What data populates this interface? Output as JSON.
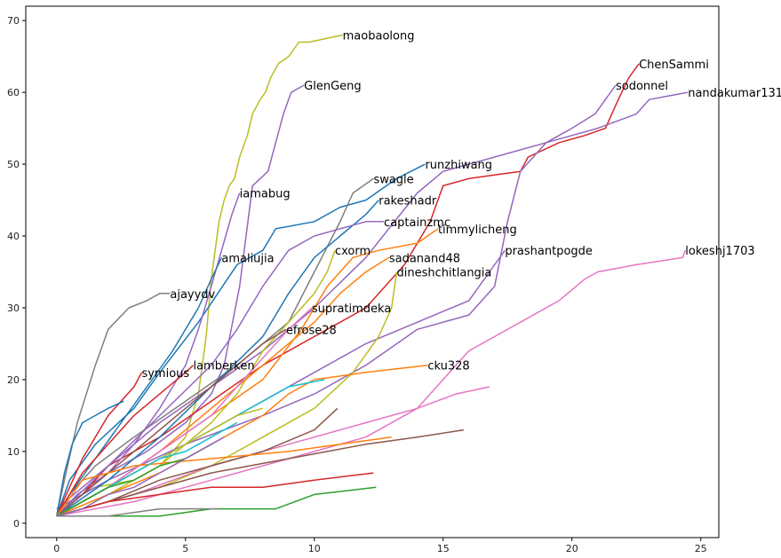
{
  "chart_data": {
    "type": "line",
    "title": "",
    "xlabel": "",
    "ylabel": "",
    "xlim": [
      -1.2,
      25.7
    ],
    "ylim": [
      -2,
      72
    ],
    "xticks": [
      "0",
      "5",
      "10",
      "15",
      "20",
      "25"
    ],
    "yticks": [
      "0",
      "10",
      "20",
      "30",
      "40",
      "50",
      "60",
      "70"
    ],
    "grid": false,
    "legend": "none",
    "colors": {
      "blue": "#1f77b4",
      "orange": "#ff7f0e",
      "green": "#2ca02c",
      "red": "#d62728",
      "purple": "#9467bd",
      "brown": "#8c564b",
      "pink": "#e377c2",
      "gray": "#7f7f7f",
      "olive": "#bcbd22",
      "cyan": "#17becf"
    },
    "series": [
      {
        "name": "maobaolong",
        "color": "#bcbd22",
        "label_at": [
          11.1,
          68
        ],
        "x": [
          0,
          0.5,
          1.5,
          3,
          4,
          5,
          5.5,
          5.8,
          6.0,
          6.3,
          6.5,
          6.7,
          6.9,
          7.1,
          7.4,
          7.6,
          7.9,
          8.1,
          8.3,
          8.6,
          9.0,
          9.4,
          9.8,
          11.1
        ],
        "y": [
          1,
          3,
          5,
          6,
          8,
          12,
          18,
          26,
          34,
          42,
          45,
          47,
          48,
          51,
          54,
          57,
          59,
          60,
          62,
          64,
          65,
          67,
          67,
          68
        ]
      },
      {
        "name": "GlenGeng",
        "color": "#9467bd",
        "label_at": [
          9.6,
          61
        ],
        "x": [
          0,
          0.8,
          2,
          3.5,
          5,
          6,
          6.5,
          7.1,
          7.6,
          8.2,
          8.5,
          8.8,
          9.1,
          9.6
        ],
        "y": [
          1,
          4,
          7,
          10,
          14,
          18,
          22,
          33,
          47,
          49,
          53,
          57,
          60,
          61
        ]
      },
      {
        "name": "ChenSammi",
        "color": "#d62728",
        "label_at": [
          22.6,
          64
        ],
        "x": [
          0,
          1,
          2,
          4,
          6,
          8,
          10,
          12,
          13.5,
          14.5,
          15,
          16,
          18,
          18.3,
          19.5,
          20.5,
          21.3,
          21.8,
          22.2,
          22.6
        ],
        "y": [
          1,
          4,
          8,
          12,
          17,
          22,
          26,
          30,
          36,
          42,
          47,
          48,
          49,
          51,
          53,
          54,
          55,
          59,
          62,
          64
        ]
      },
      {
        "name": "sodonnel",
        "color": "#9467bd",
        "label_at": [
          21.7,
          61
        ],
        "x": [
          0,
          2,
          5,
          8,
          10,
          12,
          14,
          16,
          17,
          17.5,
          18,
          19,
          20,
          20.9,
          21.3,
          21.7
        ],
        "y": [
          2,
          6,
          11,
          15,
          18,
          22,
          27,
          29,
          33,
          42,
          49,
          53,
          55,
          57,
          59,
          61
        ]
      },
      {
        "name": "nandakumar131",
        "color": "#9467bd",
        "label_at": [
          24.5,
          60
        ],
        "x": [
          0,
          2,
          4,
          6,
          8,
          10,
          12,
          14,
          15,
          17,
          19,
          21,
          22.5,
          23,
          24.5
        ],
        "y": [
          2,
          8,
          14,
          19,
          24,
          30,
          37,
          46,
          49,
          51,
          53,
          55,
          57,
          59,
          60
        ]
      },
      {
        "name": "runzhiwang",
        "color": "#1f77b4",
        "label_at": [
          14.3,
          50
        ],
        "x": [
          0,
          0.5,
          1.5,
          3,
          4,
          5.5,
          7,
          8,
          8.5,
          10,
          11,
          12,
          13.2,
          14.3
        ],
        "y": [
          1,
          6,
          11,
          16,
          21,
          28,
          36,
          38,
          41,
          42,
          44,
          45,
          48,
          50
        ]
      },
      {
        "name": "swagle",
        "color": "#7f7f7f",
        "label_at": [
          12.3,
          48
        ],
        "x": [
          0,
          0.5,
          1.5,
          3,
          5,
          7,
          9,
          10,
          11,
          11.5,
          12.3
        ],
        "y": [
          1,
          4,
          8,
          12,
          17,
          22,
          28,
          35,
          42,
          46,
          48
        ]
      },
      {
        "name": "iamabug",
        "color": "#9467bd",
        "label_at": [
          7.1,
          46
        ],
        "x": [
          0,
          1,
          2,
          3,
          4,
          5,
          5.5,
          6.0,
          6.4,
          6.8,
          7.1
        ],
        "y": [
          1,
          4,
          7,
          11,
          16,
          22,
          27,
          33,
          38,
          43,
          46
        ]
      },
      {
        "name": "rakeshadr",
        "color": "#1f77b4",
        "label_at": [
          12.5,
          45
        ],
        "x": [
          0,
          2,
          4,
          6,
          8,
          9,
          10,
          11,
          12,
          12.5
        ],
        "y": [
          1,
          6,
          12,
          19,
          26,
          32,
          37,
          40,
          43,
          45
        ]
      },
      {
        "name": "captainzmc",
        "color": "#9467bd",
        "label_at": [
          12.7,
          42
        ],
        "x": [
          0,
          2,
          4,
          6,
          7,
          8,
          9,
          10,
          11,
          12,
          12.7
        ],
        "y": [
          1,
          8,
          15,
          22,
          27,
          33,
          38,
          40,
          41,
          42,
          42
        ]
      },
      {
        "name": "timmylicheng",
        "color": "#ff7f0e",
        "label_at": [
          14.8,
          41
        ],
        "x": [
          0,
          2,
          4,
          6,
          8,
          9.5,
          10.5,
          11.5,
          12.5,
          14,
          14.8
        ],
        "y": [
          1,
          5,
          10,
          15,
          20,
          27,
          33,
          37,
          38,
          39,
          41
        ]
      },
      {
        "name": "cxorm",
        "color": "#bcbd22",
        "label_at": [
          10.8,
          38
        ],
        "x": [
          0,
          2,
          4,
          6,
          7,
          8,
          9,
          10,
          10.5,
          10.8
        ],
        "y": [
          1,
          4,
          8,
          14,
          18,
          24,
          28,
          32,
          35,
          38
        ]
      },
      {
        "name": "prashantpogde",
        "color": "#9467bd",
        "label_at": [
          17.4,
          38
        ],
        "x": [
          0,
          2,
          4,
          6,
          8,
          10,
          12,
          14,
          16,
          16.8,
          17.4
        ],
        "y": [
          1,
          5,
          9,
          13,
          17,
          21,
          25,
          28,
          31,
          35,
          38
        ]
      },
      {
        "name": "lokeshj1703",
        "color": "#e377c2",
        "label_at": [
          24.4,
          38
        ],
        "x": [
          0,
          3,
          6,
          9,
          12,
          14,
          15,
          16,
          17,
          18,
          19.5,
          20.5,
          21,
          22.5,
          24.3,
          24.4
        ],
        "y": [
          1,
          3,
          6,
          9,
          12,
          16,
          20,
          24,
          26,
          28,
          31,
          34,
          35,
          36,
          37,
          38
        ]
      },
      {
        "name": "sadanand48",
        "color": "#ff7f0e",
        "label_at": [
          12.9,
          37
        ],
        "x": [
          0,
          2,
          4,
          6,
          8,
          10,
          11,
          12,
          12.9
        ],
        "y": [
          1,
          5,
          10,
          16,
          22,
          28,
          32,
          35,
          37
        ]
      },
      {
        "name": "amaliujia",
        "color": "#1f77b4",
        "label_at": [
          6.4,
          37
        ],
        "x": [
          0,
          0.5,
          1.5,
          2.5,
          3.5,
          4.5,
          5.5,
          6.0,
          6.4
        ],
        "y": [
          1,
          4,
          9,
          14,
          19,
          24,
          30,
          34,
          37
        ]
      },
      {
        "name": "dineshchitlangia",
        "color": "#bcbd22",
        "label_at": [
          13.2,
          35
        ],
        "x": [
          0,
          2,
          4,
          6,
          8,
          10,
          11.5,
          12.5,
          13,
          13.2
        ],
        "y": [
          1,
          3,
          5,
          8,
          12,
          16,
          21,
          26,
          30,
          35
        ]
      },
      {
        "name": "ajayydv",
        "color": "#7f7f7f",
        "label_at": [
          4.4,
          32
        ],
        "x": [
          0,
          0.3,
          0.8,
          1.5,
          2,
          2.8,
          3.5,
          4.0,
          4.4
        ],
        "y": [
          1,
          6,
          14,
          22,
          27,
          30,
          31,
          32,
          32
        ]
      },
      {
        "name": "supratimdeka",
        "color": "#e377c2",
        "label_at": [
          9.9,
          30
        ],
        "x": [
          0,
          2,
          4,
          6,
          7,
          8,
          9,
          9.9
        ],
        "y": [
          1,
          5,
          10,
          15,
          19,
          23,
          27,
          30
        ]
      },
      {
        "name": "efrose28",
        "color": "#8c564b",
        "label_at": [
          8.9,
          27
        ],
        "x": [
          0,
          1,
          2,
          3,
          4,
          5,
          6,
          7,
          8,
          8.9
        ],
        "y": [
          1,
          4,
          7,
          10,
          13,
          16,
          19,
          22,
          25,
          27
        ]
      },
      {
        "name": "cku328",
        "color": "#ff7f0e",
        "label_at": [
          14.4,
          22
        ],
        "x": [
          0,
          2,
          4,
          6,
          8,
          9,
          10,
          12,
          14.4
        ],
        "y": [
          1,
          4,
          7,
          11,
          15,
          18,
          20,
          21,
          22
        ]
      },
      {
        "name": "lamberken",
        "color": "#d62728",
        "label_at": [
          5.3,
          22
        ],
        "x": [
          0,
          0.5,
          1,
          2,
          3,
          4,
          5,
          5.3
        ],
        "y": [
          1,
          4,
          7,
          11,
          15,
          18,
          21,
          22
        ]
      },
      {
        "name": "symious",
        "color": "#d62728",
        "label_at": [
          3.3,
          21
        ],
        "x": [
          0,
          0.5,
          1,
          1.5,
          2,
          2.5,
          3,
          3.3
        ],
        "y": [
          1,
          5,
          9,
          12,
          15,
          17,
          19,
          21
        ]
      },
      {
        "name": "",
        "color": "#e377c2",
        "x": [
          0,
          3,
          6,
          9,
          12,
          14,
          15.5,
          16.8
        ],
        "y": [
          1,
          4,
          8,
          11,
          14,
          16,
          18,
          19
        ]
      },
      {
        "name": "",
        "color": "#17becf",
        "x": [
          0,
          1,
          2,
          3,
          4,
          5,
          6,
          7,
          8,
          9,
          10.4
        ],
        "y": [
          1,
          3,
          5,
          7,
          9,
          11,
          13,
          15,
          17,
          19,
          20
        ]
      },
      {
        "name": "",
        "color": "#1f77b4",
        "x": [
          0,
          0.3,
          0.6,
          1.0,
          1.5,
          2.0,
          2.6
        ],
        "y": [
          1,
          7,
          11,
          14,
          15,
          16,
          17
        ]
      },
      {
        "name": "",
        "color": "#8c564b",
        "x": [
          0,
          2,
          4,
          6,
          8,
          10,
          10.9
        ],
        "y": [
          1,
          3,
          6,
          8,
          10,
          13,
          16
        ]
      },
      {
        "name": "",
        "color": "#8c564b",
        "x": [
          0,
          3,
          6,
          9,
          12,
          14,
          15.8
        ],
        "y": [
          1,
          4,
          7,
          9,
          11,
          12,
          13
        ]
      },
      {
        "name": "",
        "color": "#ff7f0e",
        "x": [
          0,
          1,
          3,
          6,
          9,
          11,
          13
        ],
        "y": [
          1,
          6,
          8,
          9,
          10,
          11,
          12
        ]
      },
      {
        "name": "",
        "color": "#d62728",
        "x": [
          0,
          2,
          4,
          6,
          8,
          10,
          12.3
        ],
        "y": [
          1,
          3,
          4,
          5,
          5,
          6,
          7
        ]
      },
      {
        "name": "",
        "color": "#2ca02c",
        "x": [
          0,
          2,
          4,
          6,
          8.5,
          10,
          12.4
        ],
        "y": [
          1,
          1,
          1,
          2,
          2,
          4,
          5
        ]
      },
      {
        "name": "",
        "color": "#7f7f7f",
        "x": [
          0,
          2,
          4,
          6.3
        ],
        "y": [
          1,
          1,
          2,
          2
        ]
      },
      {
        "name": "",
        "color": "#bcbd22",
        "x": [
          0,
          1,
          2,
          3,
          4,
          5,
          6,
          7,
          8
        ],
        "y": [
          1,
          3,
          5,
          7,
          9,
          11,
          13,
          15,
          16
        ]
      },
      {
        "name": "",
        "color": "#17becf",
        "x": [
          0,
          1,
          2,
          3,
          4,
          5,
          6,
          7
        ],
        "y": [
          1,
          3,
          5,
          7,
          9,
          10,
          12,
          14
        ]
      },
      {
        "name": "",
        "color": "#2ca02c",
        "x": [
          0,
          1,
          2,
          3,
          4,
          5,
          6
        ],
        "y": [
          1,
          3,
          5,
          6,
          8,
          9,
          11
        ]
      },
      {
        "name": "",
        "color": "#9467bd",
        "x": [
          0,
          1,
          2,
          3,
          4,
          5,
          6.5
        ],
        "y": [
          1,
          2,
          4,
          5,
          7,
          9,
          12
        ]
      }
    ]
  }
}
